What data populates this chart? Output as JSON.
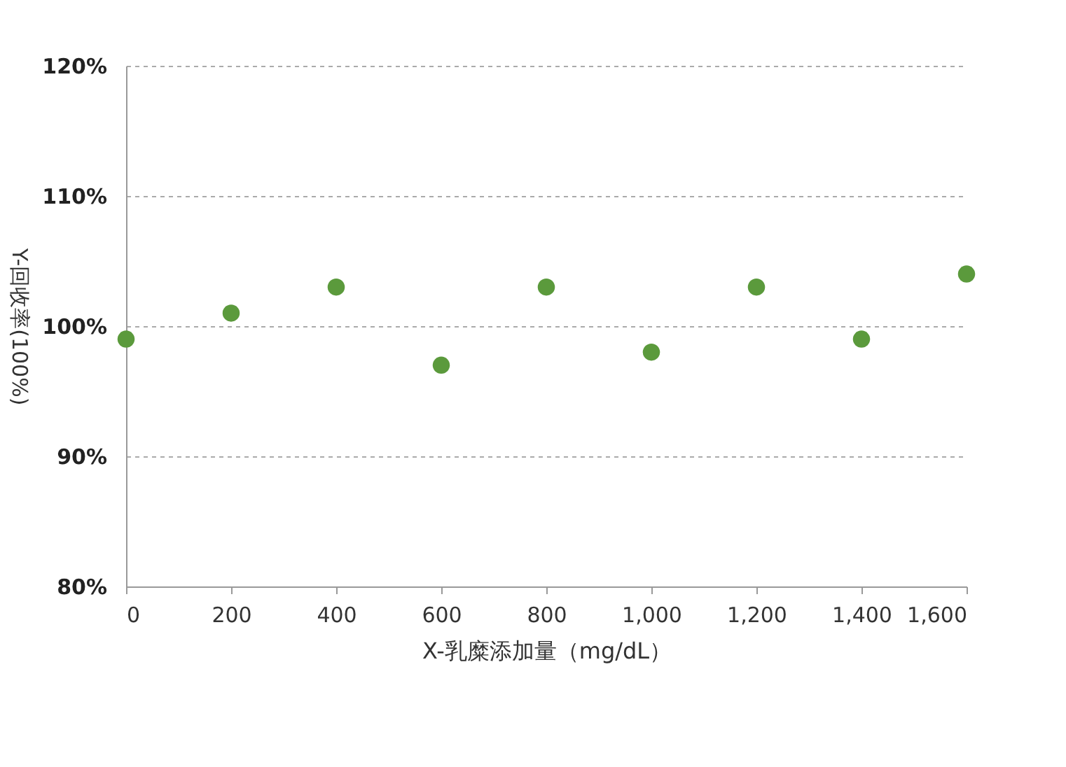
{
  "chart_data": {
    "type": "scatter",
    "xlabel": "X-乳糜添加量（mg/dL）",
    "ylabel": "Y-回收率(100%)",
    "x": [
      0,
      200,
      400,
      600,
      800,
      1000,
      1200,
      1400,
      1600
    ],
    "series": [
      {
        "color": "#5b9a3c",
        "values": [
          99,
          101,
          103,
          97,
          103,
          98,
          103,
          99,
          104
        ]
      }
    ],
    "xlim": [
      0,
      1600
    ],
    "xticks": [
      0,
      200,
      400,
      600,
      800,
      {
        "value": 1000,
        "label": "1,000"
      },
      {
        "value": 1200,
        "label": "1,200"
      },
      {
        "value": 1400,
        "label": "1,400"
      },
      {
        "value": 1600,
        "label": "1,600"
      }
    ],
    "ylim": [
      80,
      120
    ],
    "yticks": [
      {
        "value": 80,
        "label": "80%"
      },
      {
        "value": 90,
        "label": "90%"
      },
      {
        "value": 100,
        "label": "100%"
      },
      {
        "value": 110,
        "label": "110%"
      },
      {
        "value": 120,
        "label": "120%"
      }
    ],
    "grid": "y",
    "marker": "circle",
    "legend": false
  }
}
